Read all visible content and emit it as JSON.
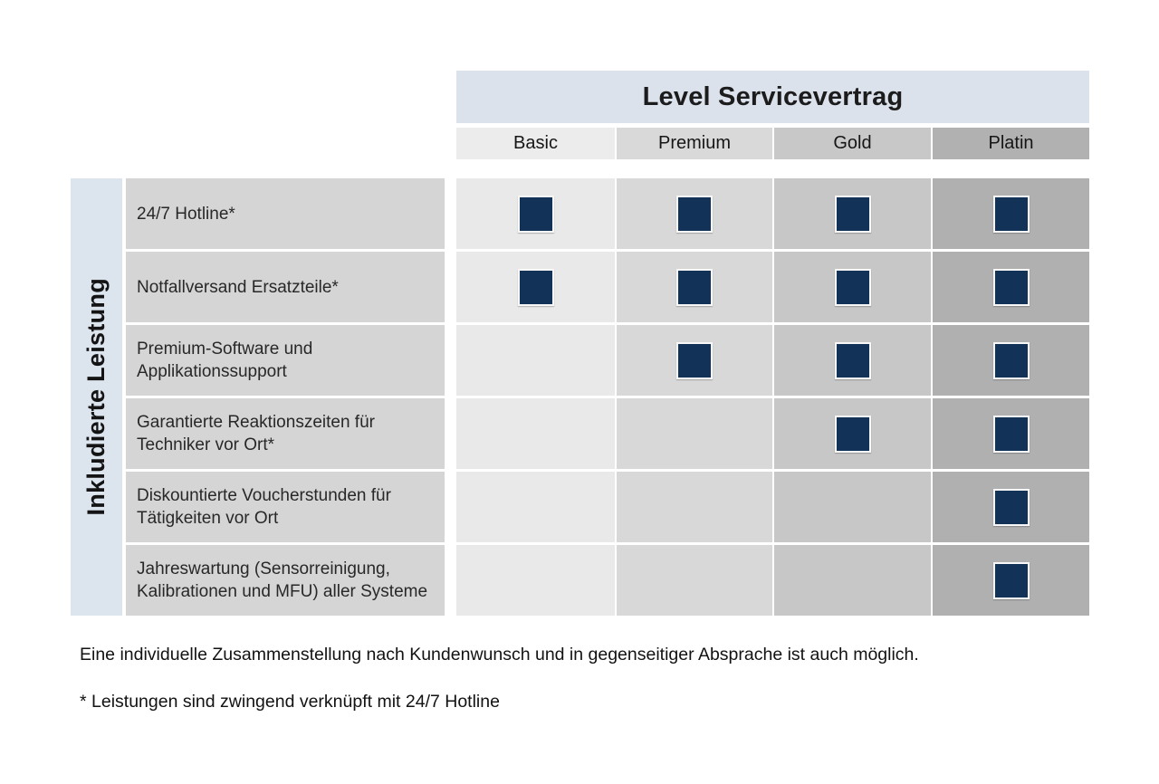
{
  "table": {
    "title": "Level Servicevertrag",
    "row_group_label": "Inkludierte Leistung",
    "columns": [
      {
        "label": "Basic",
        "color": "#ececec"
      },
      {
        "label": "Premium",
        "color": "#d9d9d9"
      },
      {
        "label": "Gold",
        "color": "#c8c8c8"
      },
      {
        "label": "Platin",
        "color": "#b1b1b1"
      }
    ],
    "header_band_color": "#dbe2ec",
    "group_strip_color": "#dce4ee",
    "check_color": "#133258",
    "features": [
      {
        "label": "24/7 Hotline*",
        "included": [
          true,
          true,
          true,
          true
        ]
      },
      {
        "label": "Notfallversand Ersatzteile*",
        "included": [
          true,
          true,
          true,
          true
        ]
      },
      {
        "label": "Premium-Software und\nApplikationssupport",
        "included": [
          false,
          true,
          true,
          true
        ]
      },
      {
        "label": "Garantierte Reaktionszeiten für\nTechniker vor Ort*",
        "included": [
          false,
          false,
          true,
          true
        ]
      },
      {
        "label": "Diskountierte Voucherstunden für\nTätigkeiten vor Ort",
        "included": [
          false,
          false,
          false,
          true
        ]
      },
      {
        "label": "Jahreswartung (Sensorreinigung,\nKalibrationen und MFU) aller Systeme",
        "included": [
          false,
          false,
          false,
          true
        ]
      }
    ]
  },
  "notes": {
    "note1": "Eine individuelle Zusammenstellung nach Kundenwunsch und in gegenseitiger Absprache ist auch möglich.",
    "note2": "* Leistungen sind zwingend verknüpft mit 24/7 Hotline"
  }
}
